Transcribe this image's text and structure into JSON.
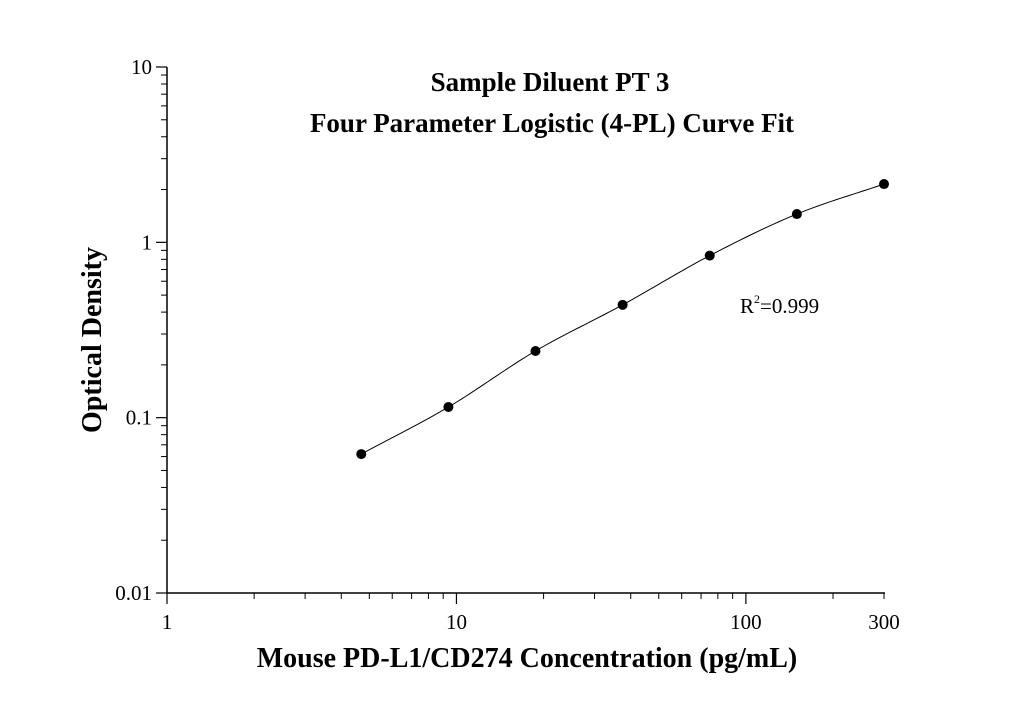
{
  "chart_data": {
    "type": "scatter",
    "title_line1": "Sample Diluent PT 3",
    "title_line2": "Four Parameter Logistic (4-PL) Curve Fit",
    "xlabel": "Mouse PD-L1/CD274 Concentration (pg/mL)",
    "ylabel": "Optical Density",
    "x_scale": "log",
    "y_scale": "log",
    "xlim": [
      1,
      300
    ],
    "ylim": [
      0.01,
      10
    ],
    "x_ticks": [
      {
        "value": 1,
        "label": "1"
      },
      {
        "value": 10,
        "label": "10"
      },
      {
        "value": 100,
        "label": "100"
      },
      {
        "value": 300,
        "label": "300"
      }
    ],
    "y_ticks": [
      {
        "value": 0.01,
        "label": "0.01"
      },
      {
        "value": 0.1,
        "label": "0.1"
      },
      {
        "value": 1,
        "label": "1"
      },
      {
        "value": 10,
        "label": "10"
      }
    ],
    "series": [
      {
        "x": [
          4.69,
          9.38,
          18.75,
          37.5,
          75,
          150,
          300
        ],
        "y": [
          0.062,
          0.115,
          0.24,
          0.44,
          0.84,
          1.45,
          2.15
        ]
      }
    ],
    "fit": {
      "model": "4-PL",
      "label_r": "R",
      "label_exp": "2",
      "label_value": "=0.999",
      "curve_color": "#000000"
    },
    "grid": false,
    "marker_color": "#000000"
  }
}
